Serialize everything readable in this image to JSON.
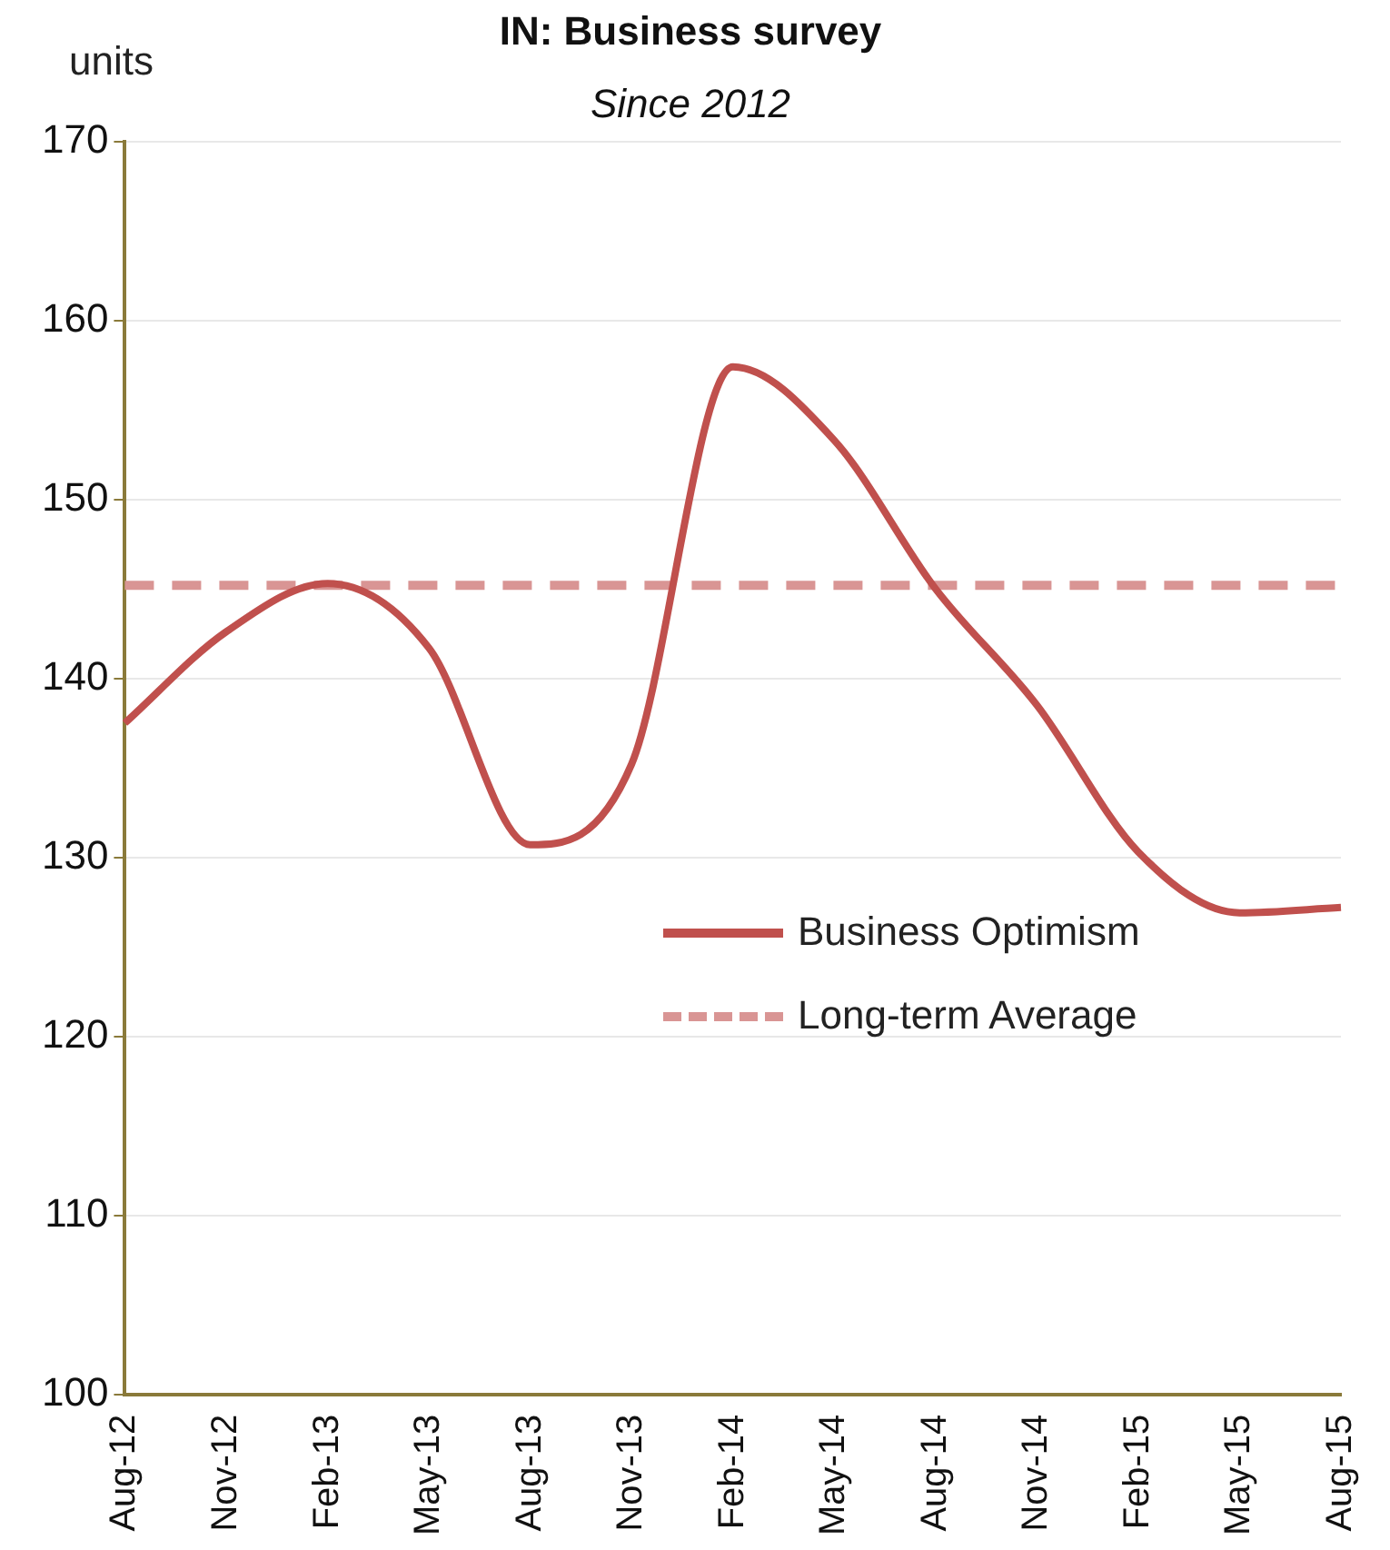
{
  "chart_data": {
    "type": "line",
    "title": "IN: Business survey",
    "subtitle": "Since 2012",
    "ylabel": "units",
    "categories": [
      "Aug-12",
      "Nov-12",
      "Feb-13",
      "May-13",
      "Aug-13",
      "Nov-13",
      "Feb-14",
      "May-14",
      "Aug-14",
      "Nov-14",
      "Feb-15",
      "May-15",
      "Aug-15"
    ],
    "series": [
      {
        "name": "Business Optimism",
        "color": "#c0504d",
        "line_style": "solid",
        "values": [
          137.5,
          142.6,
          145.3,
          141.7,
          130.7,
          135.2,
          157.4,
          153.3,
          145.0,
          138.5,
          130.3,
          126.9,
          127.2
        ]
      },
      {
        "name": "Long-term Average",
        "color": "#d99594",
        "line_style": "dashed",
        "values": [
          145.2,
          145.2,
          145.2,
          145.2,
          145.2,
          145.2,
          145.2,
          145.2,
          145.2,
          145.2,
          145.2,
          145.2,
          145.2
        ]
      }
    ],
    "ylim": [
      100,
      170
    ],
    "yticks": [
      100,
      110,
      120,
      130,
      140,
      150,
      160,
      170
    ],
    "grid": "y",
    "legend": "right",
    "marker": "none"
  }
}
